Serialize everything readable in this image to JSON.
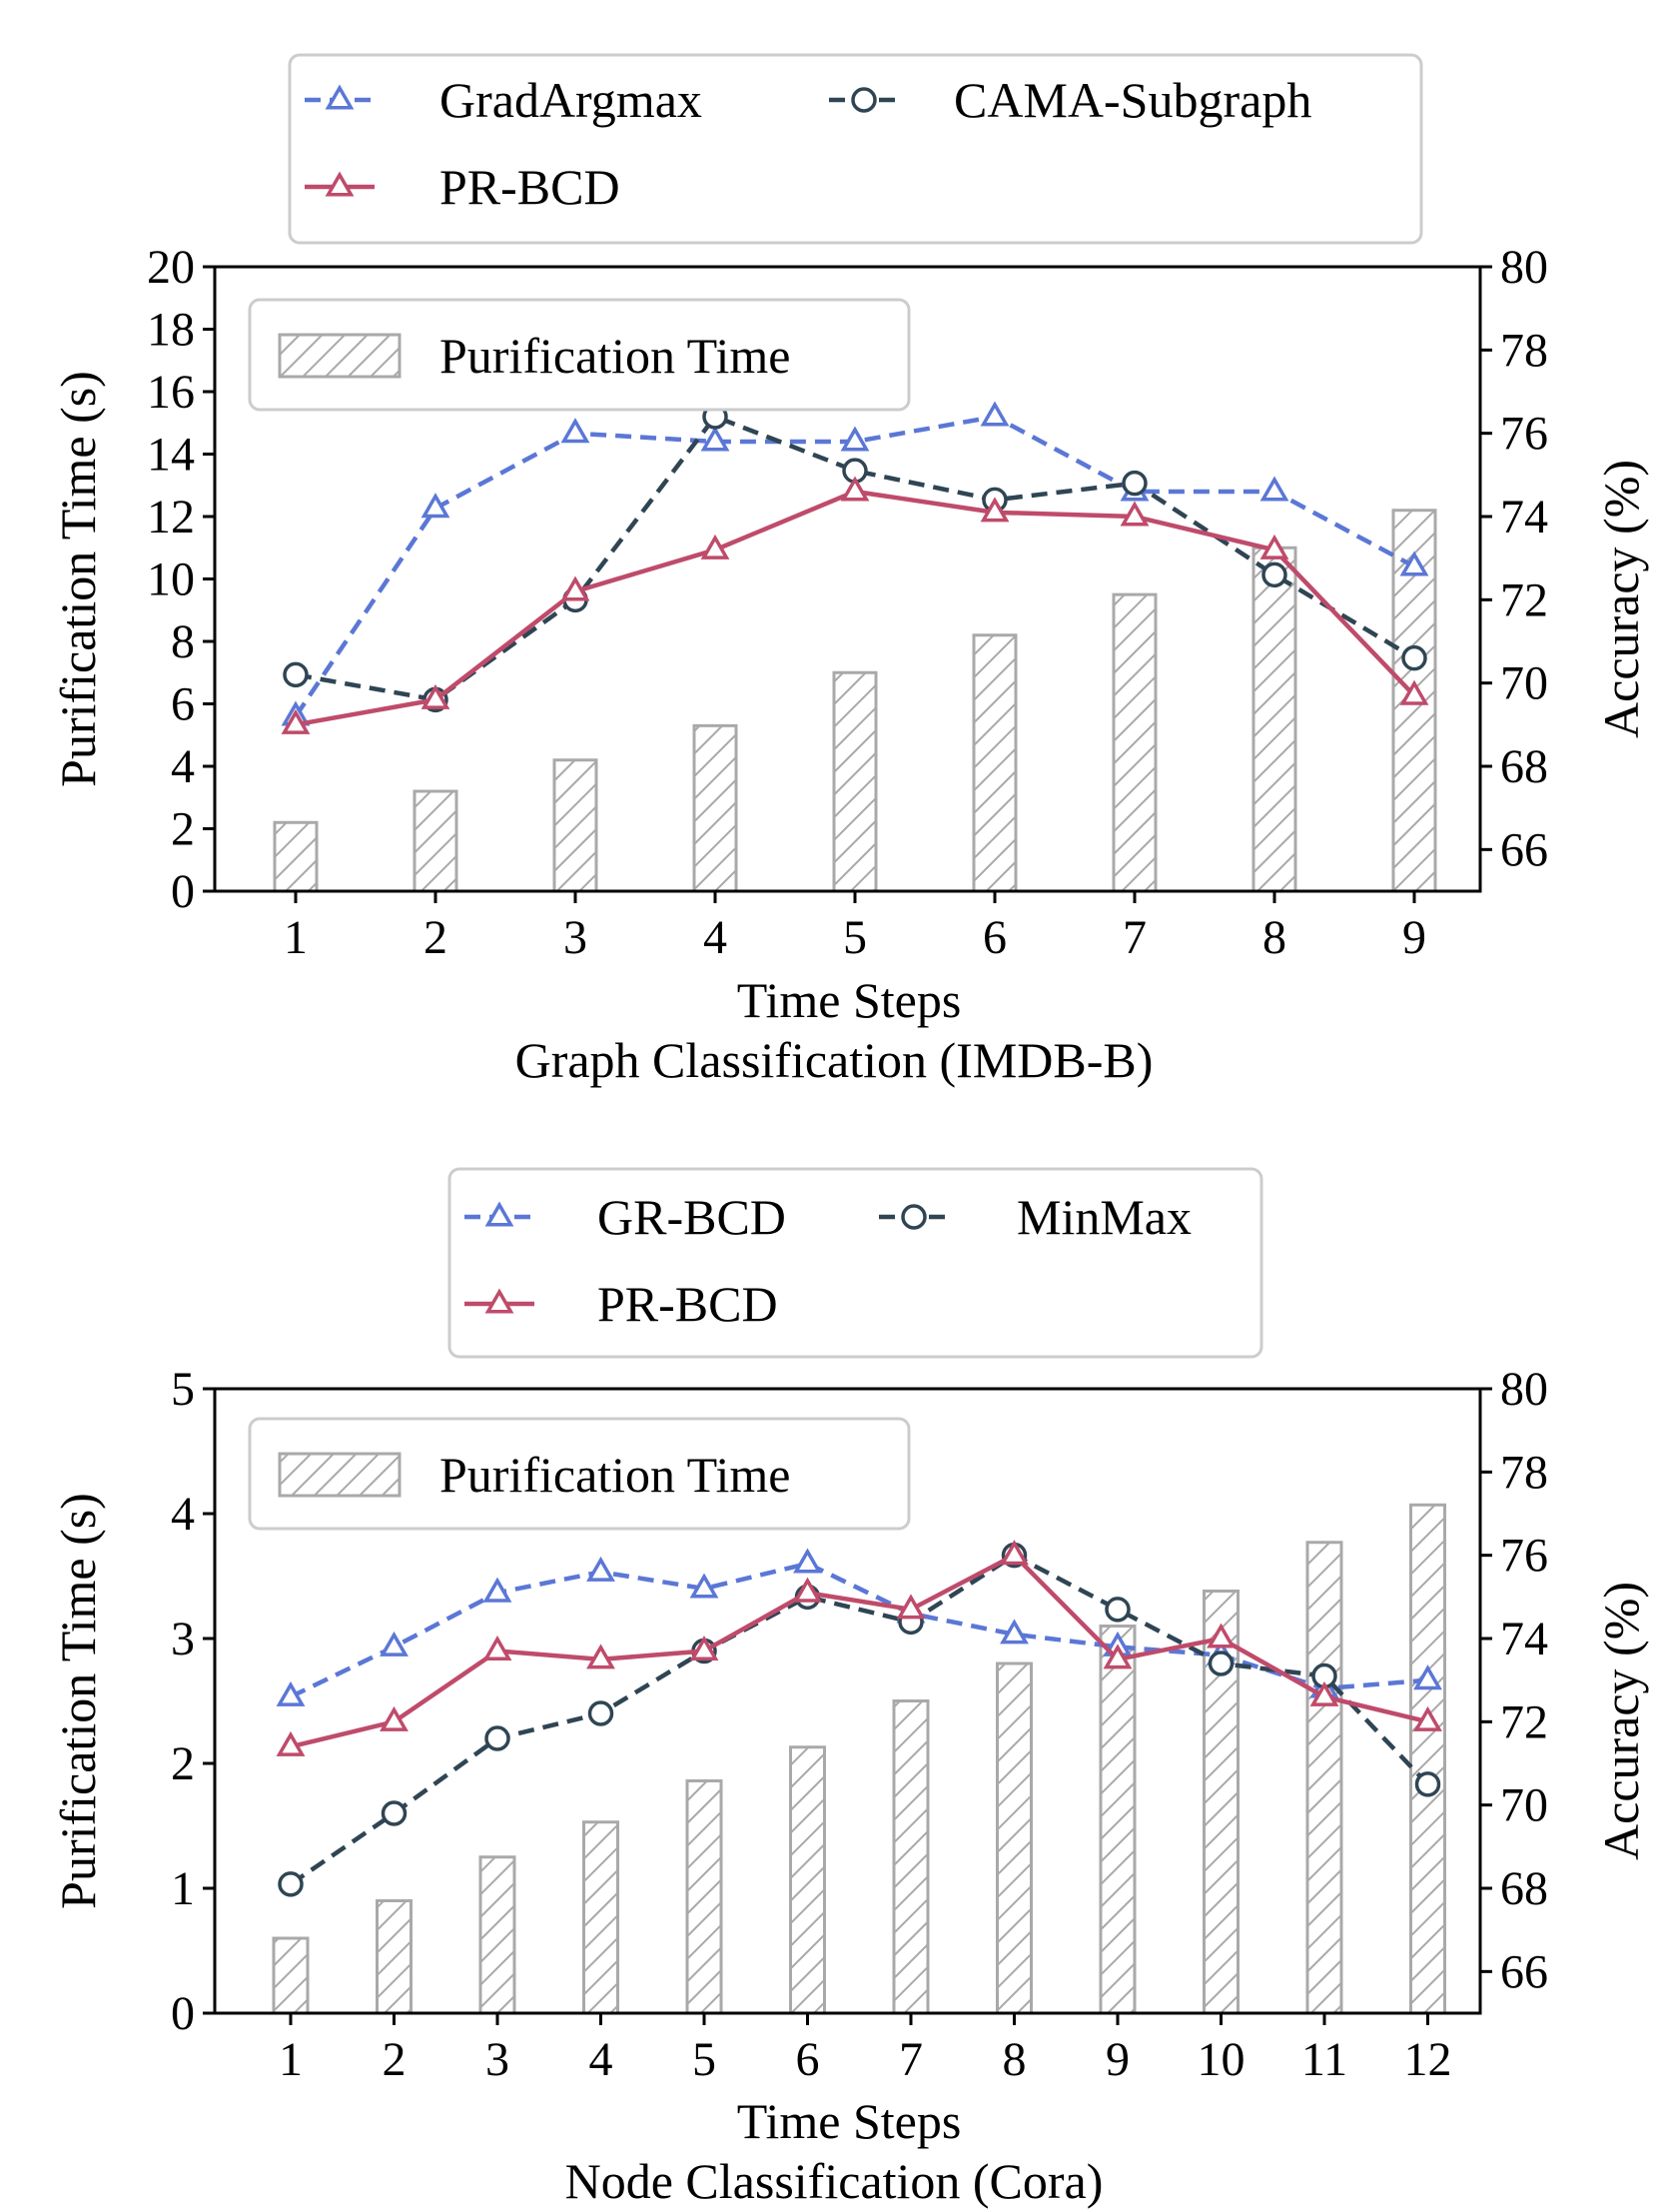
{
  "chart_data": [
    {
      "type": "bar+line",
      "caption": "Graph Classification (IMDB-B)",
      "xlabel": "Time Steps",
      "ylabel_left": "Purification Time (s)",
      "ylabel_right": "Accuracy (%)",
      "x": [
        1,
        2,
        3,
        4,
        5,
        6,
        7,
        8,
        9
      ],
      "xticks": [
        "1",
        "2",
        "3",
        "4",
        "5",
        "6",
        "7",
        "8",
        "9"
      ],
      "ylim_left": [
        0,
        20
      ],
      "yticks_left": [
        "0",
        "2",
        "4",
        "6",
        "8",
        "10",
        "12",
        "14",
        "16",
        "18",
        "20"
      ],
      "ylim_right": [
        65,
        80
      ],
      "yticks_right": [
        "66",
        "68",
        "70",
        "72",
        "74",
        "76",
        "78",
        "80"
      ],
      "bars": {
        "name": "Purification Time",
        "values": [
          2.2,
          3.2,
          4.2,
          5.3,
          7.0,
          8.2,
          9.5,
          11.0,
          12.2
        ]
      },
      "series": [
        {
          "name": "GradArgmax",
          "values": [
            69.2,
            74.2,
            76.0,
            75.8,
            75.8,
            76.4,
            74.6,
            74.6,
            72.8
          ],
          "color": "#5b77d6",
          "marker": "triangle",
          "dash": true
        },
        {
          "name": "CAMA-Subgraph",
          "values": [
            70.2,
            69.6,
            72.0,
            76.4,
            75.1,
            74.4,
            74.8,
            72.6,
            70.6
          ],
          "color": "#2f4554",
          "marker": "circle",
          "dash": true
        },
        {
          "name": "PR-BCD",
          "values": [
            69.0,
            69.6,
            72.2,
            73.2,
            74.6,
            74.1,
            74.0,
            73.2,
            69.7
          ],
          "color": "#bf4b6b",
          "marker": "triangle",
          "dash": false
        }
      ]
    },
    {
      "type": "bar+line",
      "caption": "Node Classification (Cora)",
      "xlabel": "Time Steps",
      "ylabel_left": "Purification Time (s)",
      "ylabel_right": "Accuracy (%)",
      "x": [
        1,
        2,
        3,
        4,
        5,
        6,
        7,
        8,
        9,
        10,
        11,
        12
      ],
      "xticks": [
        "1",
        "2",
        "3",
        "4",
        "5",
        "6",
        "7",
        "8",
        "9",
        "10",
        "11",
        "12"
      ],
      "ylim_left": [
        0,
        5
      ],
      "yticks_left": [
        "0",
        "1",
        "2",
        "3",
        "4",
        "5"
      ],
      "ylim_right": [
        65,
        80
      ],
      "yticks_right": [
        "66",
        "68",
        "70",
        "72",
        "74",
        "76",
        "78",
        "80"
      ],
      "bars": {
        "name": "Purification Time",
        "values": [
          0.6,
          0.9,
          1.25,
          1.53,
          1.86,
          2.13,
          2.5,
          2.8,
          3.1,
          3.38,
          3.77,
          4.07
        ]
      },
      "series": [
        {
          "name": "GR-BCD",
          "values": [
            72.6,
            73.8,
            75.1,
            75.6,
            75.2,
            75.8,
            74.6,
            74.1,
            73.8,
            73.6,
            72.8,
            73.0
          ],
          "color": "#5b77d6",
          "marker": "triangle",
          "dash": true
        },
        {
          "name": "MinMax",
          "values": [
            68.1,
            69.8,
            71.6,
            72.2,
            73.7,
            75.0,
            74.4,
            76.0,
            74.7,
            73.4,
            73.1,
            70.5
          ],
          "color": "#2f4554",
          "marker": "circle",
          "dash": true
        },
        {
          "name": "PR-BCD",
          "values": [
            71.4,
            72.0,
            73.7,
            73.5,
            73.7,
            75.1,
            74.7,
            76.0,
            73.5,
            74.0,
            72.6,
            72.0
          ],
          "color": "#bf4b6b",
          "marker": "triangle",
          "dash": false
        }
      ]
    }
  ]
}
